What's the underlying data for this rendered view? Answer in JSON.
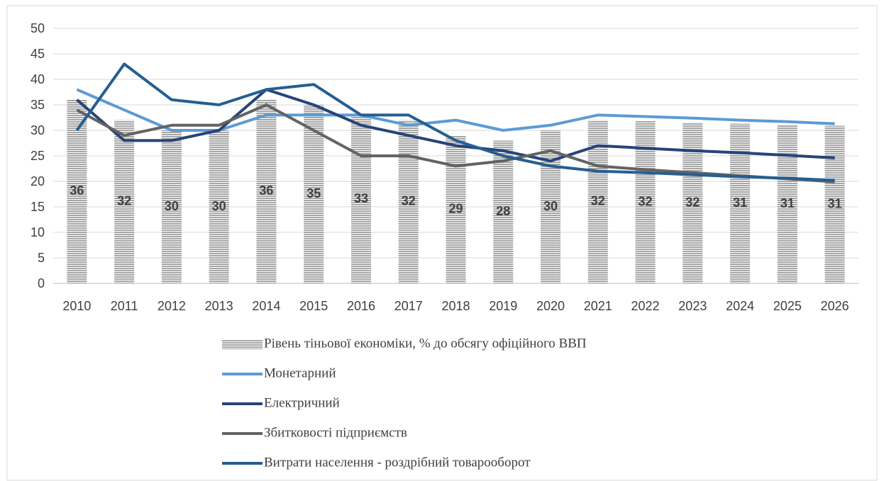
{
  "chart_data": {
    "type": "bar-line",
    "categories": [
      "2010",
      "2011",
      "2012",
      "2013",
      "2014",
      "2015",
      "2016",
      "2017",
      "2018",
      "2019",
      "2020",
      "2021",
      "2022",
      "2023",
      "2024",
      "2025",
      "2026"
    ],
    "ylim": [
      0,
      50
    ],
    "yticks": [
      0,
      5,
      10,
      15,
      20,
      25,
      30,
      35,
      40,
      45,
      50
    ],
    "grid": true,
    "legend": "bottom",
    "series": [
      {
        "name": "Рівень тіньової економіки, % до обсягу офіційного ВВП",
        "type": "bar",
        "color": "#a6a6a6",
        "values": [
          36,
          32,
          30,
          30,
          36,
          35,
          33,
          32,
          29,
          28,
          30,
          32,
          31.8,
          31.5,
          31.3,
          31.1,
          30.9
        ],
        "value_labels": [
          "36",
          "32",
          "30",
          "30",
          "36",
          "35",
          "33",
          "32",
          "29",
          "28",
          "30",
          "32",
          "32",
          "32",
          "31",
          "31",
          "31"
        ]
      },
      {
        "name": "Монетарний",
        "type": "line",
        "color": "#5b9bd5",
        "values": [
          38,
          34,
          30,
          30,
          33,
          33,
          33,
          31,
          32,
          30,
          31,
          33,
          32.7,
          32.4,
          32.0,
          31.7,
          31.3
        ]
      },
      {
        "name": "Електричний",
        "type": "line",
        "color": "#264478",
        "values": [
          36,
          28,
          28,
          30,
          38,
          35,
          31,
          29,
          27,
          26,
          24,
          27,
          26.5,
          26.0,
          25.6,
          25.1,
          24.6
        ]
      },
      {
        "name": "Збитковості підприємств",
        "type": "line",
        "color": "#636363",
        "values": [
          34,
          29,
          31,
          31,
          35,
          30,
          25,
          25,
          23,
          24,
          26,
          23,
          22.3,
          21.7,
          21.1,
          20.5,
          19.9
        ]
      },
      {
        "name": "Витрати населення - роздрібний товарооборот",
        "type": "line",
        "color": "#255e91",
        "values": [
          30,
          43,
          36,
          35,
          38,
          39,
          33,
          33,
          28,
          25,
          23,
          22,
          21.7,
          21.3,
          20.9,
          20.6,
          20.2
        ]
      }
    ]
  }
}
